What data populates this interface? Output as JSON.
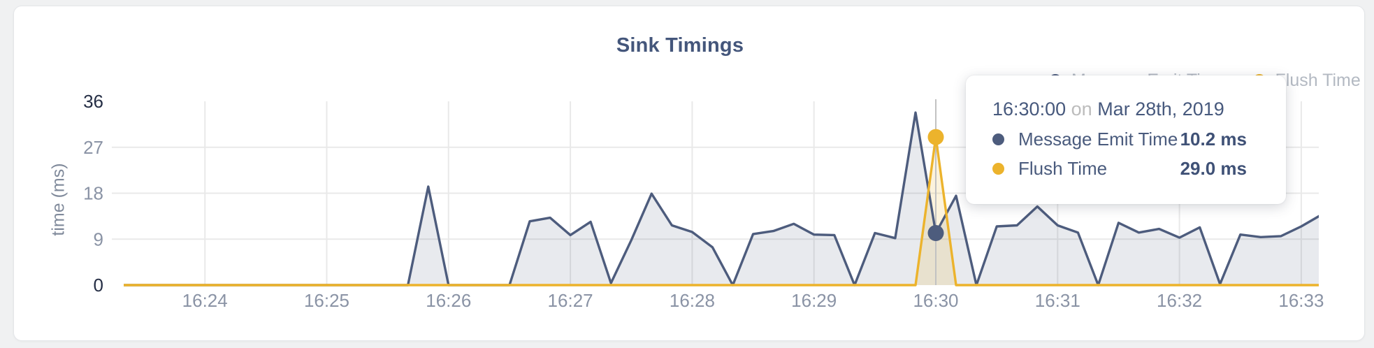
{
  "card": {
    "title": "Sink Timings"
  },
  "legend": {
    "items": [
      {
        "label": "Message Emit Time",
        "color": "#4d5c7d"
      },
      {
        "label": "Flush Time",
        "color": "#ecb32c"
      }
    ]
  },
  "tooltip": {
    "time": "16:30:00",
    "conjunction": "on",
    "date": "Mar 28th, 2019",
    "rows": [
      {
        "label": "Message Emit Time",
        "value": "10.2 ms",
        "color": "#4d5c7d"
      },
      {
        "label": "Flush Time",
        "value": "29.0 ms",
        "color": "#ecb32c"
      }
    ]
  },
  "chart_data": {
    "type": "area",
    "title": "Sink Timings",
    "xlabel": "",
    "ylabel": "time (ms)",
    "ylim": [
      0,
      36
    ],
    "y_ticks": [
      0,
      9,
      18,
      27,
      36
    ],
    "x_start": "16:23:20",
    "x_interval_seconds": 10,
    "x_tick_labels": [
      "16:24",
      "16:25",
      "16:26",
      "16:27",
      "16:28",
      "16:29",
      "16:30",
      "16:31",
      "16:32",
      "16:33"
    ],
    "x_tick_indices": [
      4,
      10,
      16,
      22,
      28,
      34,
      40,
      46,
      52,
      58
    ],
    "grid": true,
    "legend_position": "top-right",
    "hover": {
      "index": 40,
      "time": "16:30:00",
      "date": "Mar 28th, 2019"
    },
    "series": [
      {
        "name": "Message Emit Time",
        "color": "#4d5c7d",
        "fill": "rgba(76,92,126,0.13)",
        "values": [
          0,
          0,
          0,
          0,
          0,
          0,
          0,
          0,
          0,
          0,
          0,
          0,
          0,
          0,
          0,
          19.3,
          0,
          0,
          0,
          0,
          12.5,
          13.2,
          9.8,
          12.4,
          0.4,
          8.8,
          17.9,
          11.7,
          10.4,
          7.4,
          0,
          10,
          10.6,
          12,
          9.9,
          9.8,
          0,
          10.2,
          9.2,
          33.8,
          10.2,
          17.5,
          0,
          11.5,
          11.7,
          15.4,
          11.7,
          10.3,
          0,
          12.2,
          10.3,
          11,
          9.3,
          11.3,
          0.2,
          9.9,
          9.4,
          9.6,
          11.5,
          13.8
        ]
      },
      {
        "name": "Flush Time",
        "color": "#ecb32c",
        "fill": "rgba(237,179,42,0.16)",
        "values": [
          0,
          0,
          0,
          0,
          0,
          0,
          0,
          0,
          0,
          0,
          0,
          0,
          0,
          0,
          0,
          0,
          0,
          0,
          0,
          0,
          0,
          0,
          0,
          0,
          0,
          0,
          0,
          0,
          0,
          0,
          0,
          0,
          0,
          0,
          0,
          0,
          0,
          0,
          0,
          0,
          29,
          0,
          0,
          0,
          0,
          0,
          0,
          0,
          0,
          0,
          0,
          0,
          0,
          0,
          0,
          0,
          0,
          0,
          0,
          0
        ]
      }
    ],
    "hover_values": {
      "Message Emit Time": 10.2,
      "Flush Time": 29.0
    }
  },
  "colors": {
    "grid": "#e9e9e9",
    "ruler": "#c2c2c2",
    "x_tick_text": "#8a93a5",
    "y_tick_text_minor": "#8a93a5",
    "y_tick_text_edge": "#252e45",
    "title_text": "#44567b",
    "page_background": "#f0f1f2"
  }
}
